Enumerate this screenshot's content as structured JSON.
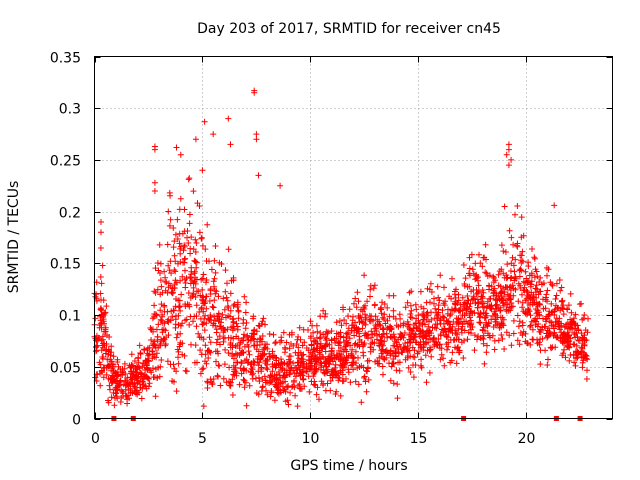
{
  "chart_data": {
    "type": "scatter",
    "title": "Day 203 of 2017, SRMTID for receiver cn45",
    "xlabel": "GPS time / hours",
    "ylabel": "SRMTID / TECUs",
    "xlim": [
      0,
      24
    ],
    "ylim": [
      0,
      0.35
    ],
    "grid": true,
    "x_ticks": [
      0,
      5,
      10,
      15,
      20
    ],
    "x_tick_labels": [
      "0",
      "5",
      "10",
      "15",
      "20"
    ],
    "y_ticks": [
      0,
      0.05,
      0.1,
      0.15,
      0.2,
      0.25,
      0.3,
      0.35
    ],
    "y_tick_labels": [
      "0",
      "0.05",
      "0.1",
      "0.15",
      "0.2",
      "0.25",
      "0.3",
      "0.35"
    ],
    "marker": "+",
    "series": [
      {
        "name": "SRMTID",
        "color": "#ff0000",
        "envelope_hours": [
          0,
          0.3,
          0.6,
          1,
          1.5,
          2,
          2.5,
          3,
          3.5,
          4,
          4.5,
          5,
          5.5,
          6,
          6.5,
          7,
          7.5,
          8,
          8.5,
          9,
          9.5,
          10,
          10.5,
          11,
          11.5,
          12,
          12.5,
          13,
          13.5,
          14,
          14.5,
          15,
          15.5,
          16,
          16.5,
          17,
          17.5,
          18,
          18.5,
          19,
          19.5,
          20,
          20.5,
          21,
          21.5,
          22,
          22.5,
          22.9
        ],
        "envelope_median": [
          0.08,
          0.09,
          0.05,
          0.035,
          0.035,
          0.04,
          0.05,
          0.09,
          0.11,
          0.12,
          0.12,
          0.1,
          0.09,
          0.09,
          0.07,
          0.06,
          0.06,
          0.05,
          0.045,
          0.045,
          0.05,
          0.055,
          0.06,
          0.055,
          0.06,
          0.075,
          0.08,
          0.08,
          0.075,
          0.07,
          0.07,
          0.085,
          0.09,
          0.09,
          0.09,
          0.1,
          0.11,
          0.11,
          0.1,
          0.11,
          0.13,
          0.12,
          0.1,
          0.09,
          0.09,
          0.08,
          0.075,
          0.07
        ],
        "envelope_spread": [
          0.035,
          0.05,
          0.03,
          0.015,
          0.015,
          0.02,
          0.025,
          0.06,
          0.07,
          0.075,
          0.07,
          0.065,
          0.05,
          0.06,
          0.04,
          0.035,
          0.035,
          0.03,
          0.025,
          0.025,
          0.025,
          0.025,
          0.03,
          0.025,
          0.03,
          0.035,
          0.04,
          0.035,
          0.03,
          0.03,
          0.03,
          0.035,
          0.035,
          0.035,
          0.03,
          0.035,
          0.04,
          0.04,
          0.035,
          0.04,
          0.05,
          0.045,
          0.035,
          0.035,
          0.03,
          0.03,
          0.025,
          0.025
        ],
        "peaks": [
          {
            "x": 7.4,
            "y": 0.317
          },
          {
            "x": 7.4,
            "y": 0.315
          },
          {
            "x": 6.2,
            "y": 0.29
          },
          {
            "x": 5.1,
            "y": 0.287
          },
          {
            "x": 5.5,
            "y": 0.275
          },
          {
            "x": 7.5,
            "y": 0.275
          },
          {
            "x": 7.5,
            "y": 0.27
          },
          {
            "x": 4.7,
            "y": 0.27
          },
          {
            "x": 6.3,
            "y": 0.265
          },
          {
            "x": 19.2,
            "y": 0.265
          },
          {
            "x": 19.2,
            "y": 0.26
          },
          {
            "x": 2.8,
            "y": 0.263
          },
          {
            "x": 2.8,
            "y": 0.26
          },
          {
            "x": 3.8,
            "y": 0.262
          },
          {
            "x": 4.0,
            "y": 0.255
          },
          {
            "x": 19.1,
            "y": 0.255
          },
          {
            "x": 19.3,
            "y": 0.25
          },
          {
            "x": 19.2,
            "y": 0.245
          },
          {
            "x": 5.0,
            "y": 0.24
          },
          {
            "x": 7.6,
            "y": 0.235
          },
          {
            "x": 2.8,
            "y": 0.228
          },
          {
            "x": 2.8,
            "y": 0.22
          },
          {
            "x": 8.6,
            "y": 0.225
          },
          {
            "x": 21.3,
            "y": 0.206
          },
          {
            "x": 19.0,
            "y": 0.205
          },
          {
            "x": 0.3,
            "y": 0.19
          },
          {
            "x": 0.3,
            "y": 0.18
          }
        ]
      }
    ],
    "gap_markers_x": [
      0.9,
      1.8,
      17.1,
      21.4,
      22.5
    ]
  }
}
